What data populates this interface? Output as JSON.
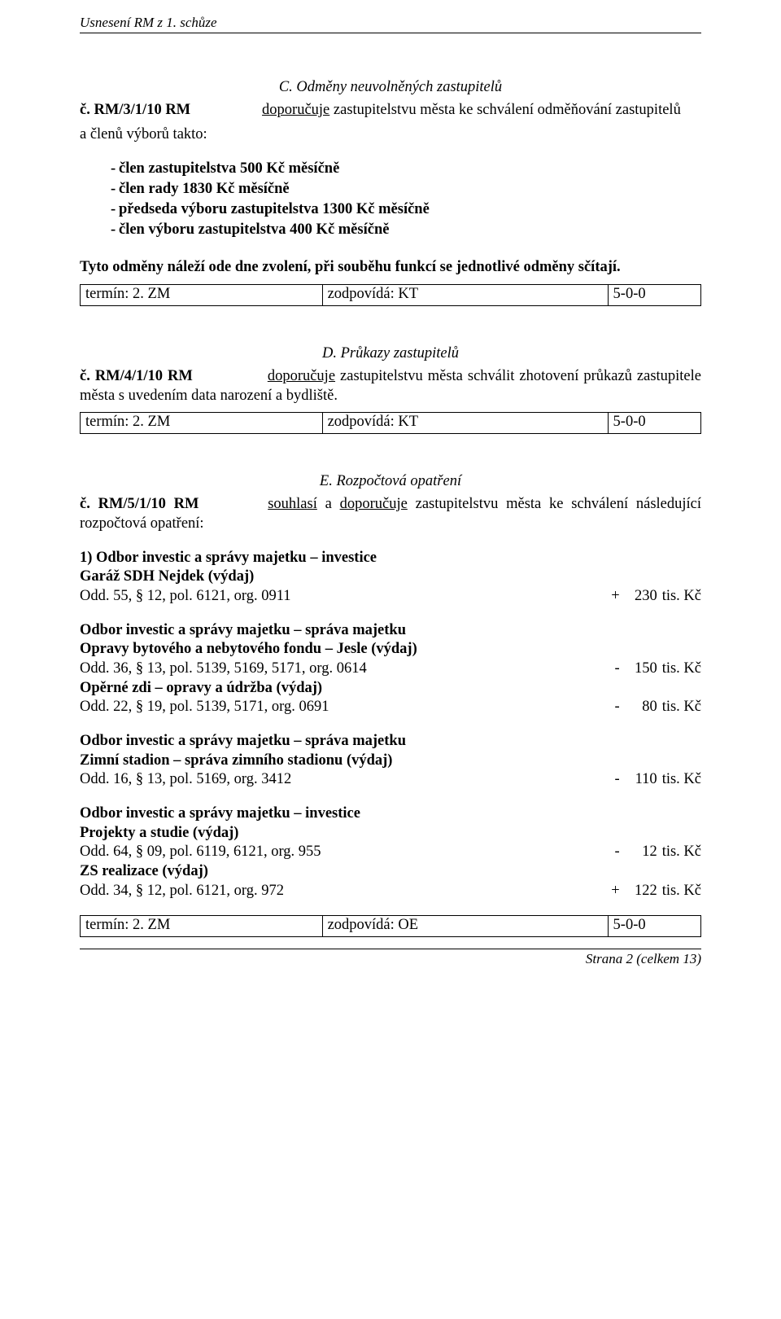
{
  "header": "Usnesení RM z 1. schůze",
  "footer": "Strana 2 (celkem 13)",
  "sectionC": {
    "title": "C.  Odměny neuvolněných zastupitelů",
    "prefix": "č. RM/3/1/10 RM",
    "action": "doporučuje",
    "restLine1": " zastupitelstvu města ke schválení odměňování zastupitelů",
    "line2": "a členů výborů takto:",
    "bullets": [
      "člen zastupitelstva 500 Kč měsíčně",
      "člen rady 1830 Kč měsíčně",
      "předseda výboru zastupitelstva 1300 Kč měsíčně",
      "člen výboru zastupitelstva 400 Kč měsíčně"
    ],
    "note": "Tyto odměny náleží ode dne zvolení, při souběhu funkcí se jednotlivé odměny sčítají.",
    "table": {
      "c1": "termín: 2. ZM",
      "c2": "zodpovídá: KT",
      "c3": "5-0-0"
    }
  },
  "sectionD": {
    "title": "D.  Průkazy zastupitelů",
    "prefix": "č. RM/4/1/10 RM",
    "action": "doporučuje",
    "rest": " zastupitelstvu města schválit zhotovení průkazů zastupitele města s uvedením data narození a bydliště.",
    "table": {
      "c1": "termín: 2. ZM",
      "c2": "zodpovídá: KT",
      "c3": "5-0-0"
    }
  },
  "sectionE": {
    "title": "E.  Rozpočtová opatření",
    "prefix": "č. RM/5/1/10 RM",
    "actions": "souhlasí",
    "and": " a ",
    "action2": "doporučuje",
    "rest": " zastupitelstvu města ke schválení následující rozpočtová opatření:",
    "blocks": [
      {
        "title": "1) Odbor investic a správy majetku – investice",
        "rows": [
          {
            "label": "Garáž SDH Nejdek (výdaj)",
            "bold": true
          },
          {
            "label": "Odd. 55, § 12, pol. 6121, org. 0911",
            "sign": "+",
            "amount": "230",
            "unit": "tis. Kč"
          }
        ]
      },
      {
        "title": "Odbor investic a správy majetku – správa majetku",
        "rows": [
          {
            "label": "Opravy bytového a nebytového fondu – Jesle (výdaj)",
            "bold": true
          },
          {
            "label": "Odd. 36, § 13, pol. 5139, 5169, 5171, org. 0614",
            "sign": "-",
            "amount": "150",
            "unit": "tis. Kč"
          },
          {
            "label": "Opěrné zdi – opravy a údržba (výdaj)",
            "bold": true
          },
          {
            "label": "Odd. 22, § 19, pol. 5139, 5171, org. 0691",
            "sign": "-",
            "amount": "80",
            "unit": "tis. Kč"
          }
        ]
      },
      {
        "title": "Odbor investic a správy majetku – správa majetku",
        "rows": [
          {
            "label": "Zimní stadion – správa zimního stadionu (výdaj)",
            "bold": true
          },
          {
            "label": "Odd. 16, § 13, pol. 5169, org. 3412",
            "sign": "-",
            "amount": "110",
            "unit": "tis. Kč"
          }
        ]
      },
      {
        "title": "Odbor investic a správy majetku – investice",
        "rows": [
          {
            "label": "Projekty a studie (výdaj)",
            "bold": true
          },
          {
            "label": "Odd. 64, § 09, pol. 6119, 6121, org. 955",
            "sign": "-",
            "amount": "12",
            "unit": "tis. Kč"
          },
          {
            "label": "ZS realizace (výdaj)",
            "bold": true
          },
          {
            "label": "Odd. 34, § 12, pol. 6121, org. 972",
            "sign": "+",
            "amount": "122",
            "unit": "tis. Kč"
          }
        ]
      }
    ],
    "table": {
      "c1": "termín: 2. ZM",
      "c2": "zodpovídá: OE",
      "c3": "5-0-0"
    }
  }
}
